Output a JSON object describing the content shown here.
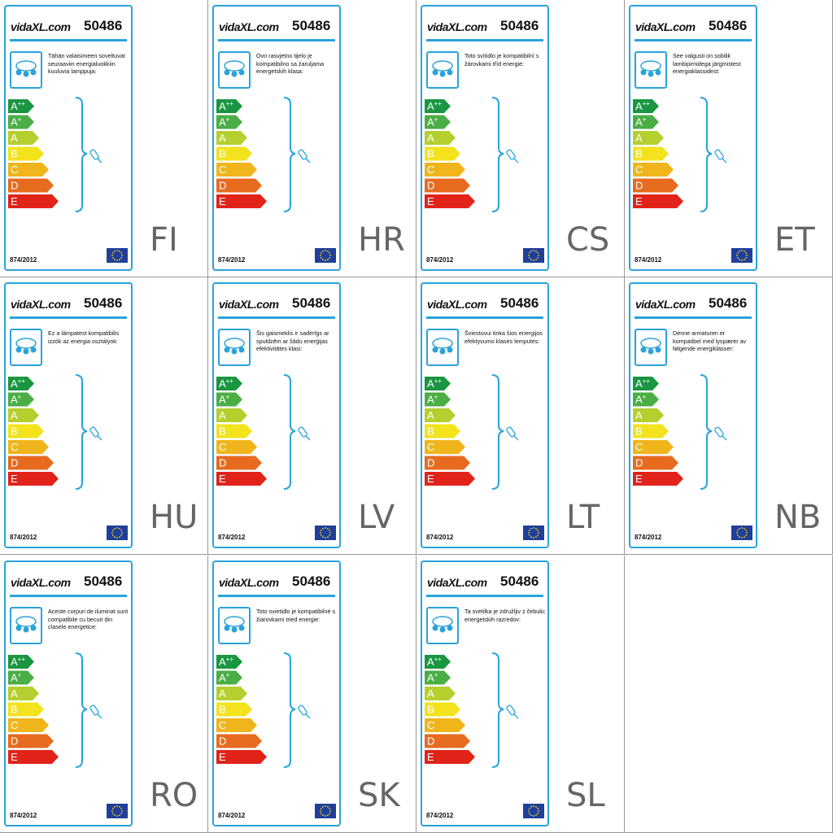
{
  "brand": "vidaXL.com",
  "product_number": "50486",
  "regulation": "874/2012",
  "energy_classes": [
    "A++",
    "A+",
    "A",
    "B",
    "C",
    "D",
    "E"
  ],
  "labels": [
    {
      "code": "FI",
      "text": "Tähän valaisimeen soveltuvat seuraaviin energialuokkiin kuuluvia lamppuja:"
    },
    {
      "code": "HR",
      "text": "Ovo rasvjetno tijelo je kompatibilno sa žaruljama energetskih klasa:"
    },
    {
      "code": "CS",
      "text": "Toto svítidlo je kompatibilní s žárovkami tříd energie:"
    },
    {
      "code": "ET",
      "text": "See valgusti on sobilik lambipirnidega järgmistest energiaklassidest:"
    },
    {
      "code": "HU",
      "text": "Ez a lámpatest kompatibilis izzók az energia osztályok:"
    },
    {
      "code": "LV",
      "text": "Šis gaismeklis ir saderīgs ar spuldzēm ar šādu enerģijas efektivitātes klasi:"
    },
    {
      "code": "LT",
      "text": "Šviestuvui tinka šios energijos efektyvumo klasės lemputės:"
    },
    {
      "code": "NB",
      "text": "Denne armaturen er kompatibel med lyspærer av følgende energiklasser:"
    },
    {
      "code": "RO",
      "text": "Aceste corpuri de iluminat sunt compatibile cu becuri din clasele energetice:"
    },
    {
      "code": "SK",
      "text": "Toto svietidlo je kompatibilné s žiarovkami tried energie:"
    },
    {
      "code": "SL",
      "text": "Ta svetilka je združljiv z čebulic energetskih razredov:"
    }
  ]
}
